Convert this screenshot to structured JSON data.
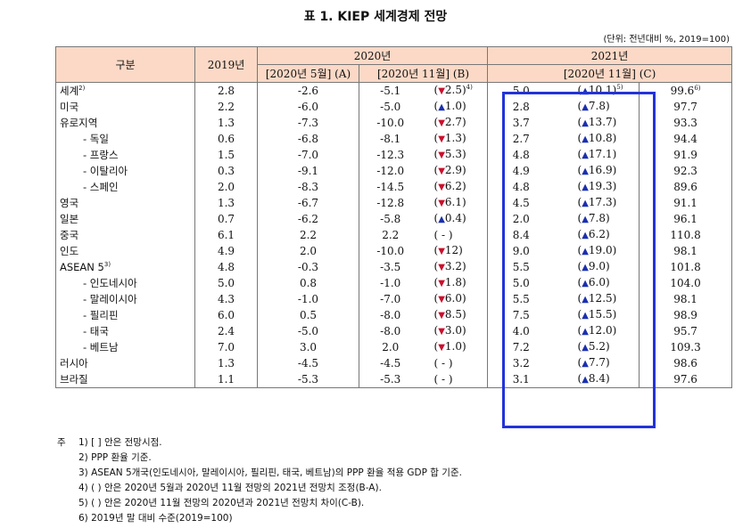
{
  "title": "표 1. KIEP 세계경제 전망",
  "unit": "(단위: 전년대비 %, 2019=100)",
  "header": {
    "region": "구분",
    "y2019": "2019년",
    "y2020": "2020년",
    "y2021": "2021년",
    "may": "[2020년 5월] (A)",
    "nov_b": "[2020년 11월] (B)",
    "nov_c": "[2020년 11월] (C)"
  },
  "rows": [
    {
      "name": "세계",
      "sup": "2)",
      "sub": false,
      "v2019": "2.8",
      "may": "-2.6",
      "nov": "-5.1",
      "dir_b": "down",
      "chg_b": "2.5",
      "close_b": ")",
      "sup_b": "4)",
      "v2021": "5.0",
      "dir_c": "up",
      "chg_c": "10.1",
      "close_c": ")",
      "sup_c": "5)",
      "idx": "99.6",
      "sup_idx": "6)"
    },
    {
      "name": "미국",
      "sub": false,
      "v2019": "2.2",
      "may": "-6.0",
      "nov": "-5.0",
      "dir_b": "up",
      "chg_b": "1.0",
      "close_b": ")",
      "v2021": "2.8",
      "dir_c": "up",
      "chg_c": "7.8",
      "close_c": ")",
      "idx": "97.7"
    },
    {
      "name": "유로지역",
      "sub": false,
      "v2019": "1.3",
      "may": "-7.3",
      "nov": "-10.0",
      "dir_b": "down",
      "chg_b": "2.7",
      "close_b": ")",
      "v2021": "3.7",
      "dir_c": "up",
      "chg_c": "13.7",
      "close_c": ")",
      "idx": "93.3"
    },
    {
      "name": "- 독일",
      "sub": true,
      "v2019": "0.6",
      "may": "-6.8",
      "nov": "-8.1",
      "dir_b": "down",
      "chg_b": "1.3",
      "close_b": ")",
      "v2021": "2.7",
      "dir_c": "up",
      "chg_c": "10.8",
      "close_c": ")",
      "idx": "94.4"
    },
    {
      "name": "- 프랑스",
      "sub": true,
      "v2019": "1.5",
      "may": "-7.0",
      "nov": "-12.3",
      "dir_b": "down",
      "chg_b": "5.3",
      "close_b": ")",
      "v2021": "4.8",
      "dir_c": "up",
      "chg_c": "17.1",
      "close_c": ")",
      "idx": "91.9"
    },
    {
      "name": "- 이탈리아",
      "sub": true,
      "v2019": "0.3",
      "may": "-9.1",
      "nov": "-12.0",
      "dir_b": "down",
      "chg_b": "2.9",
      "close_b": ")",
      "v2021": "4.9",
      "dir_c": "up",
      "chg_c": "16.9",
      "close_c": ")",
      "idx": "92.3"
    },
    {
      "name": "- 스페인",
      "sub": true,
      "v2019": "2.0",
      "may": "-8.3",
      "nov": "-14.5",
      "dir_b": "down",
      "chg_b": "6.2",
      "close_b": ")",
      "v2021": "4.8",
      "dir_c": "up",
      "chg_c": "19.3",
      "close_c": ")",
      "idx": "89.6"
    },
    {
      "name": "영국",
      "sub": false,
      "v2019": "1.3",
      "may": "-6.7",
      "nov": "-12.8",
      "dir_b": "down",
      "chg_b": "6.1",
      "close_b": ")",
      "v2021": "4.5",
      "dir_c": "up",
      "chg_c": "17.3",
      "close_c": ")",
      "idx": "91.1"
    },
    {
      "name": "일본",
      "sub": false,
      "v2019": "0.7",
      "may": "-6.2",
      "nov": "-5.8",
      "dir_b": "up",
      "chg_b": "0.4",
      "close_b": ")",
      "v2021": "2.0",
      "dir_c": "up",
      "chg_c": "7.8",
      "close_c": ")",
      "idx": "96.1"
    },
    {
      "name": "중국",
      "sub": false,
      "v2019": "6.1",
      "may": "2.2",
      "nov": "2.2",
      "dir_b": "none",
      "chg_b": "( - )",
      "close_b": "",
      "v2021": "8.4",
      "dir_c": "up",
      "chg_c": "6.2",
      "close_c": ")",
      "idx": "110.8"
    },
    {
      "name": "인도",
      "sub": false,
      "v2019": "4.9",
      "may": "2.0",
      "nov": "-10.0",
      "dir_b": "down",
      "chg_b": "12",
      "close_b": ")",
      "v2021": "9.0",
      "dir_c": "up",
      "chg_c": "19.0",
      "close_c": ")",
      "idx": "98.1"
    },
    {
      "name": "ASEAN 5",
      "sup": "3)",
      "sub": false,
      "v2019": "4.8",
      "may": "-0.3",
      "nov": "-3.5",
      "dir_b": "down",
      "chg_b": "3.2",
      "close_b": ")",
      "v2021": "5.5",
      "dir_c": "up",
      "chg_c": "9.0",
      "close_c": ")",
      "idx": "101.8"
    },
    {
      "name": "- 인도네시아",
      "sub": true,
      "v2019": "5.0",
      "may": "0.8",
      "nov": "-1.0",
      "dir_b": "down",
      "chg_b": "1.8",
      "close_b": ")",
      "v2021": "5.0",
      "dir_c": "up",
      "chg_c": "6.0",
      "close_c": ")",
      "idx": "104.0"
    },
    {
      "name": "- 말레이시아",
      "sub": true,
      "v2019": "4.3",
      "may": "-1.0",
      "nov": "-7.0",
      "dir_b": "down",
      "chg_b": "6.0",
      "close_b": ")",
      "v2021": "5.5",
      "dir_c": "up",
      "chg_c": "12.5",
      "close_c": ")",
      "idx": "98.1"
    },
    {
      "name": "- 필리핀",
      "sub": true,
      "v2019": "6.0",
      "may": "0.5",
      "nov": "-8.0",
      "dir_b": "down",
      "chg_b": "8.5",
      "close_b": ")",
      "v2021": "7.5",
      "dir_c": "up",
      "chg_c": "15.5",
      "close_c": ")",
      "idx": "98.9"
    },
    {
      "name": "- 태국",
      "sub": true,
      "v2019": "2.4",
      "may": "-5.0",
      "nov": "-8.0",
      "dir_b": "down",
      "chg_b": "3.0",
      "close_b": ")",
      "v2021": "4.0",
      "dir_c": "up",
      "chg_c": "12.0",
      "close_c": ")",
      "idx": "95.7"
    },
    {
      "name": "- 베트남",
      "sub": true,
      "v2019": "7.0",
      "may": "3.0",
      "nov": "2.0",
      "dir_b": "down",
      "chg_b": "1.0",
      "close_b": ")",
      "v2021": "7.2",
      "dir_c": "up",
      "chg_c": "5.2",
      "close_c": ")",
      "idx": "109.3"
    },
    {
      "name": "러시아",
      "sub": false,
      "v2019": "1.3",
      "may": "-4.5",
      "nov": "-4.5",
      "dir_b": "none",
      "chg_b": "( - )",
      "close_b": "",
      "v2021": "3.2",
      "dir_c": "up",
      "chg_c": "7.7",
      "close_c": ")",
      "idx": "98.6"
    },
    {
      "name": "브라질",
      "sub": false,
      "v2019": "1.1",
      "may": "-5.3",
      "nov": "-5.3",
      "dir_b": "none",
      "chg_b": "( - )",
      "close_b": "",
      "v2021": "3.1",
      "dir_c": "up",
      "chg_c": "8.4",
      "close_c": ")",
      "idx": "97.6"
    }
  ],
  "notes": {
    "lead": "주",
    "items": [
      "1) [ ] 안은 전망시점.",
      "2) PPP 환율 기준.",
      "3) ASEAN 5개국(인도네시아, 말레이시아, 필리핀, 태국, 베트남)의 PPP 환율 적용 GDP 합 기준.",
      "4) ( ) 안은 2020년 5월과 2020년 11월 전망의 2021년 전망치 조정(B-A).",
      "5) ( ) 안은 2020년 11월 전망의 2020년과 2021년 전망치 차이(C-B).",
      "6) 2019년 말 대비 수준(2019=100)"
    ]
  },
  "colors": {
    "header_bg": "#fbd9c6",
    "down": "#c8102e",
    "up": "#1a2fb0",
    "highlight_box": "#2233d9"
  }
}
